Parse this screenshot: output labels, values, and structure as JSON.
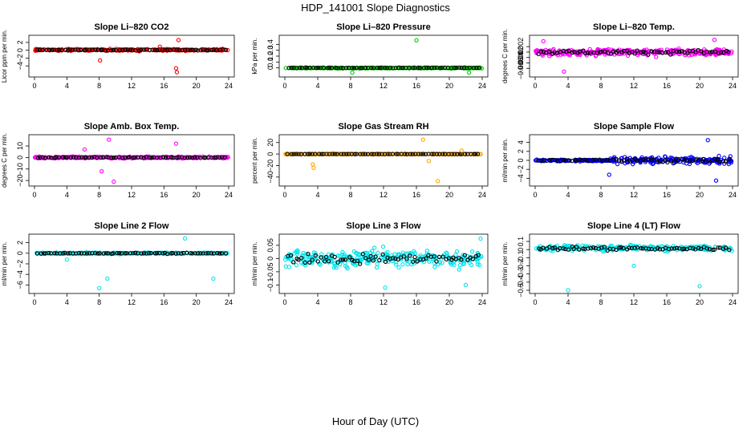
{
  "figure": {
    "title": "HDP_141001  Slope Diagnostics",
    "xlabel": "Hour of Day (UTC)"
  },
  "chart_data": [
    {
      "type": "scatter",
      "title": "Slope Li–820 CO2",
      "ylabel": "Licor ppm per min.",
      "xlim": [
        0,
        24
      ],
      "xticks": [
        0,
        4,
        8,
        12,
        16,
        20,
        24
      ],
      "ylim": [
        -6,
        3
      ],
      "yticks": [
        -4,
        -2,
        0,
        2
      ],
      "color": "#ff0000",
      "series_note": "~400 colored points concentrated in [-0.5, 0.7]; black points near 0",
      "outliers": [
        {
          "x": 8.1,
          "y": -2.6
        },
        {
          "x": 17.8,
          "y": 2.6
        },
        {
          "x": 17.5,
          "y": -4.6
        },
        {
          "x": 17.6,
          "y": -5.6
        },
        {
          "x": 15.5,
          "y": 0.9
        }
      ]
    },
    {
      "type": "scatter",
      "title": "Slope Li–820 Pressure",
      "ylabel": "kPa per min.",
      "xlim": [
        0,
        24
      ],
      "xticks": [
        0,
        4,
        8,
        12,
        16,
        20,
        24
      ],
      "ylim": [
        -0.1,
        0.5
      ],
      "yticks": [
        0.0,
        0.1,
        0.2,
        0.3,
        0.4
      ],
      "color": "#00cc00",
      "series_note": "points near 0.0 with slight spread",
      "outliers": [
        {
          "x": 16.0,
          "y": 0.47
        },
        {
          "x": 8.2,
          "y": -0.08
        },
        {
          "x": 22.4,
          "y": -0.08
        }
      ]
    },
    {
      "type": "scatter",
      "title": "Slope Li–820 Temp.",
      "ylabel": "degrees C per min.",
      "xlim": [
        0,
        24
      ],
      "xticks": [
        0,
        4,
        8,
        12,
        16,
        20,
        24
      ],
      "ylim": [
        -0.008,
        0.005
      ],
      "yticks": [
        -0.006,
        -0.004,
        -0.002,
        0.0,
        0.002
      ],
      "color": "#ff00ff",
      "series_note": "dense band between -0.002 and 0.002",
      "outliers": [
        {
          "x": 3.5,
          "y": -0.0072
        },
        {
          "x": 21.8,
          "y": 0.0045
        },
        {
          "x": 1.0,
          "y": 0.004
        }
      ]
    },
    {
      "type": "scatter",
      "title": "Slope Amb. Box Temp.",
      "ylabel": "degrees C per min.",
      "xlim": [
        0,
        24
      ],
      "xticks": [
        0,
        4,
        8,
        12,
        16,
        20,
        24
      ],
      "ylim": [
        -22,
        17
      ],
      "yticks": [
        -20,
        -10,
        0,
        10
      ],
      "color": "#ff00ff",
      "series_note": "most points near 0 with scattered excursions",
      "outliers": [
        {
          "x": 9.2,
          "y": 15.5
        },
        {
          "x": 9.8,
          "y": -21
        },
        {
          "x": 6.2,
          "y": 7
        },
        {
          "x": 17.5,
          "y": 12
        },
        {
          "x": 8.3,
          "y": -12
        }
      ]
    },
    {
      "type": "scatter",
      "title": "Slope Gas Stream RH",
      "ylabel": "percent per min.",
      "xlim": [
        0,
        24
      ],
      "xticks": [
        0,
        4,
        8,
        12,
        16,
        20,
        24
      ],
      "ylim": [
        -50,
        28
      ],
      "yticks": [
        -40,
        -20,
        0,
        20
      ],
      "color": "#ffa500",
      "series_note": "points at 0 with excursions near hours 3.5 and 17–19",
      "outliers": [
        {
          "x": 3.4,
          "y": -18
        },
        {
          "x": 3.5,
          "y": -24
        },
        {
          "x": 16.8,
          "y": 25
        },
        {
          "x": 18.6,
          "y": -47
        },
        {
          "x": 17.5,
          "y": -12
        },
        {
          "x": 21.5,
          "y": 6
        }
      ]
    },
    {
      "type": "scatter",
      "title": "Slope Sample Flow",
      "ylabel": "ml/min per min.",
      "xlim": [
        0,
        24
      ],
      "xticks": [
        0,
        4,
        8,
        12,
        16,
        20,
        24
      ],
      "ylim": [
        -5,
        5
      ],
      "yticks": [
        -4,
        -2,
        0,
        2,
        4
      ],
      "color": "#0000ff",
      "series_note": "tight near 0 before hour 9, wider spread after",
      "outliers": [
        {
          "x": 21.0,
          "y": 4.5
        },
        {
          "x": 22.0,
          "y": -4.5
        },
        {
          "x": 9.0,
          "y": -3.2
        }
      ]
    },
    {
      "type": "scatter",
      "title": "Slope Line 2 Flow",
      "ylabel": "ml/min per min.",
      "xlim": [
        0,
        24
      ],
      "xticks": [
        0,
        4,
        8,
        12,
        16,
        20,
        24
      ],
      "ylim": [
        -7,
        3
      ],
      "yticks": [
        -6,
        -4,
        -2,
        0,
        2
      ],
      "color": "#00e5ee",
      "series_note": "points near 0",
      "outliers": [
        {
          "x": 8.0,
          "y": -6.6
        },
        {
          "x": 9.0,
          "y": -4.8
        },
        {
          "x": 22.1,
          "y": -4.8
        },
        {
          "x": 18.6,
          "y": 2.8
        },
        {
          "x": 4.0,
          "y": -1.2
        }
      ]
    },
    {
      "type": "scatter",
      "title": "Slope Line 3 Flow",
      "ylabel": "ml/min per min.",
      "xlim": [
        0,
        24
      ],
      "xticks": [
        0,
        4,
        8,
        12,
        16,
        20,
        24
      ],
      "ylim": [
        -0.12,
        0.08
      ],
      "yticks": [
        -0.1,
        -0.05,
        0.0,
        0.05
      ],
      "color": "#00e5ee",
      "series_note": "dense cloud between -0.08 and 0.06",
      "outliers": [
        {
          "x": 12.2,
          "y": -0.11
        },
        {
          "x": 22.0,
          "y": -0.1
        },
        {
          "x": 23.8,
          "y": 0.075
        }
      ]
    },
    {
      "type": "scatter",
      "title": "Slope Line 4 (LT) Flow",
      "ylabel": "ml/min per min.",
      "xlim": [
        0,
        24
      ],
      "xticks": [
        0,
        4,
        8,
        12,
        16,
        20,
        24
      ],
      "ylim": [
        -0.5,
        0.15
      ],
      "yticks": [
        -0.5,
        -0.4,
        -0.3,
        -0.2,
        -0.1,
        0.0,
        0.1
      ],
      "color": "#00e5ee",
      "series_note": "points in [-0.05, 0.1]",
      "outliers": [
        {
          "x": 4.0,
          "y": -0.5
        },
        {
          "x": 20.0,
          "y": -0.45
        },
        {
          "x": 12.0,
          "y": -0.2
        }
      ]
    }
  ]
}
